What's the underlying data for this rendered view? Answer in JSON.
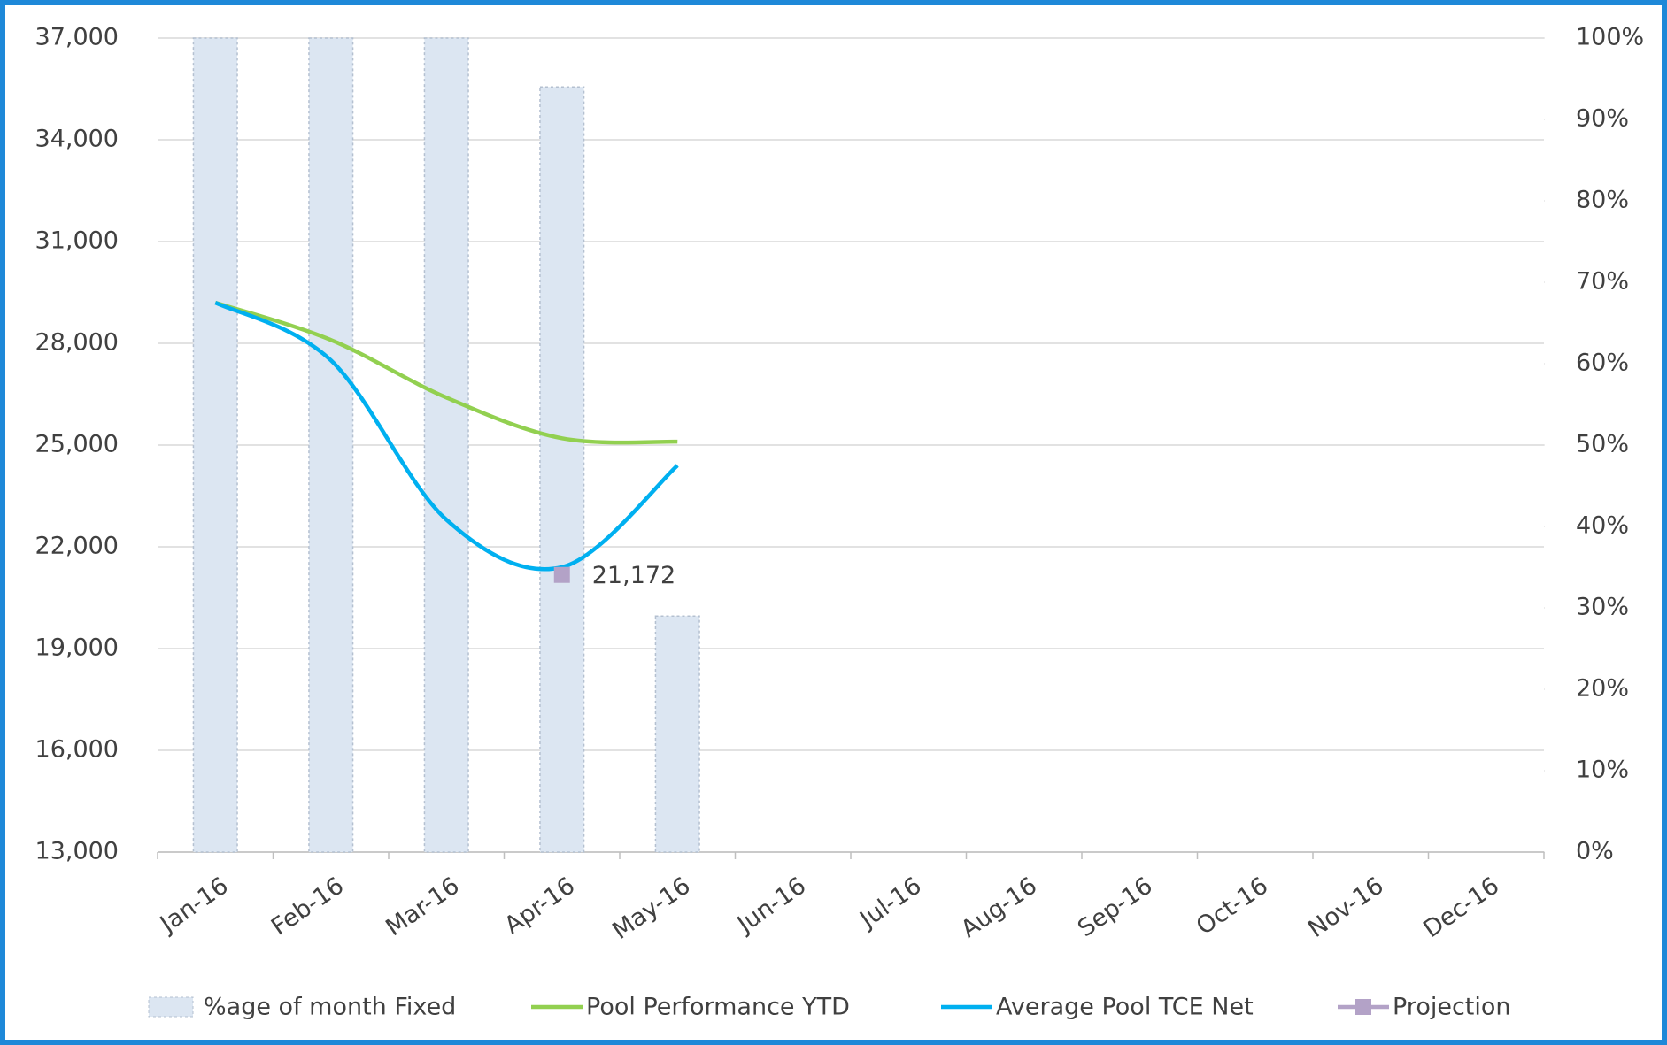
{
  "chart_data": {
    "type": "combo",
    "categories": [
      "Jan-16",
      "Feb-16",
      "Mar-16",
      "Apr-16",
      "May-16",
      "Jun-16",
      "Jul-16",
      "Aug-16",
      "Sep-16",
      "Oct-16",
      "Nov-16",
      "Dec-16"
    ],
    "series": [
      {
        "name": "%age of month Fixed",
        "type": "bar",
        "axis": "y2",
        "color": "#dce6f2",
        "values": [
          100,
          100,
          100,
          94,
          29,
          null,
          null,
          null,
          null,
          null,
          null,
          null
        ]
      },
      {
        "name": "Pool Performance YTD",
        "type": "line",
        "color": "#92d050",
        "values": [
          29200,
          28100,
          26400,
          25200,
          25100,
          null,
          null,
          null,
          null,
          null,
          null,
          null
        ]
      },
      {
        "name": "Average Pool TCE Net",
        "type": "line",
        "color": "#00b0f0",
        "values": [
          29200,
          27500,
          22800,
          21400,
          24400,
          null,
          null,
          null,
          null,
          null,
          null,
          null
        ]
      },
      {
        "name": "Projection",
        "type": "marker",
        "color": "#b3a2c7",
        "values": [
          null,
          null,
          null,
          21172,
          null,
          null,
          null,
          null,
          null,
          null,
          null,
          null
        ],
        "value_labels": [
          null,
          null,
          null,
          "21,172",
          null,
          null,
          null,
          null,
          null,
          null,
          null,
          null
        ]
      }
    ],
    "ylim": [
      13000,
      37000
    ],
    "yticks": [
      {
        "value": 13000,
        "label": "13,000"
      },
      {
        "value": 16000,
        "label": "16,000"
      },
      {
        "value": 19000,
        "label": "19,000"
      },
      {
        "value": 22000,
        "label": "22,000"
      },
      {
        "value": 25000,
        "label": "25,000"
      },
      {
        "value": 28000,
        "label": "28,000"
      },
      {
        "value": 31000,
        "label": "31,000"
      },
      {
        "value": 34000,
        "label": "34,000"
      },
      {
        "value": 37000,
        "label": "37,000"
      }
    ],
    "y2lim": [
      0,
      100
    ],
    "y2ticks": [
      {
        "value": 0,
        "label": "0%"
      },
      {
        "value": 10,
        "label": "10%"
      },
      {
        "value": 20,
        "label": "20%"
      },
      {
        "value": 30,
        "label": "30%"
      },
      {
        "value": 40,
        "label": "40%"
      },
      {
        "value": 50,
        "label": "50%"
      },
      {
        "value": 60,
        "label": "60%"
      },
      {
        "value": 70,
        "label": "70%"
      },
      {
        "value": 80,
        "label": "80%"
      },
      {
        "value": 90,
        "label": "90%"
      },
      {
        "value": 100,
        "label": "100%"
      }
    ],
    "grid": true,
    "legend": "bottom"
  }
}
